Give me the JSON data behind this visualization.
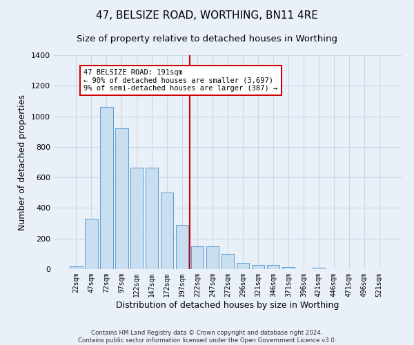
{
  "title": "47, BELSIZE ROAD, WORTHING, BN11 4RE",
  "subtitle": "Size of property relative to detached houses in Worthing",
  "xlabel": "Distribution of detached houses by size in Worthing",
  "ylabel": "Number of detached properties",
  "bar_labels": [
    "22sqm",
    "47sqm",
    "72sqm",
    "97sqm",
    "122sqm",
    "147sqm",
    "172sqm",
    "197sqm",
    "222sqm",
    "247sqm",
    "272sqm",
    "296sqm",
    "321sqm",
    "346sqm",
    "371sqm",
    "396sqm",
    "421sqm",
    "446sqm",
    "471sqm",
    "496sqm",
    "521sqm"
  ],
  "bar_values": [
    20,
    330,
    1060,
    920,
    665,
    665,
    500,
    290,
    150,
    150,
    100,
    40,
    25,
    25,
    15,
    0,
    10,
    0,
    0,
    0,
    0
  ],
  "bar_color": "#c9dff0",
  "bar_edge_color": "#5b9bd5",
  "grid_color": "#c8d8e8",
  "background_color": "#eaf0f8",
  "vline_x": 7.5,
  "vline_color": "#cc0000",
  "annotation_text": "47 BELSIZE ROAD: 191sqm\n← 90% of detached houses are smaller (3,697)\n9% of semi-detached houses are larger (387) →",
  "annotation_box_color": "#ffffff",
  "annotation_box_edge": "#cc0000",
  "ylim": [
    0,
    1400
  ],
  "yticks": [
    0,
    200,
    400,
    600,
    800,
    1000,
    1200,
    1400
  ],
  "footer": "Contains HM Land Registry data © Crown copyright and database right 2024.\nContains public sector information licensed under the Open Government Licence v3.0.",
  "title_fontsize": 11,
  "subtitle_fontsize": 9.5,
  "ylabel_fontsize": 9,
  "xlabel_fontsize": 9
}
